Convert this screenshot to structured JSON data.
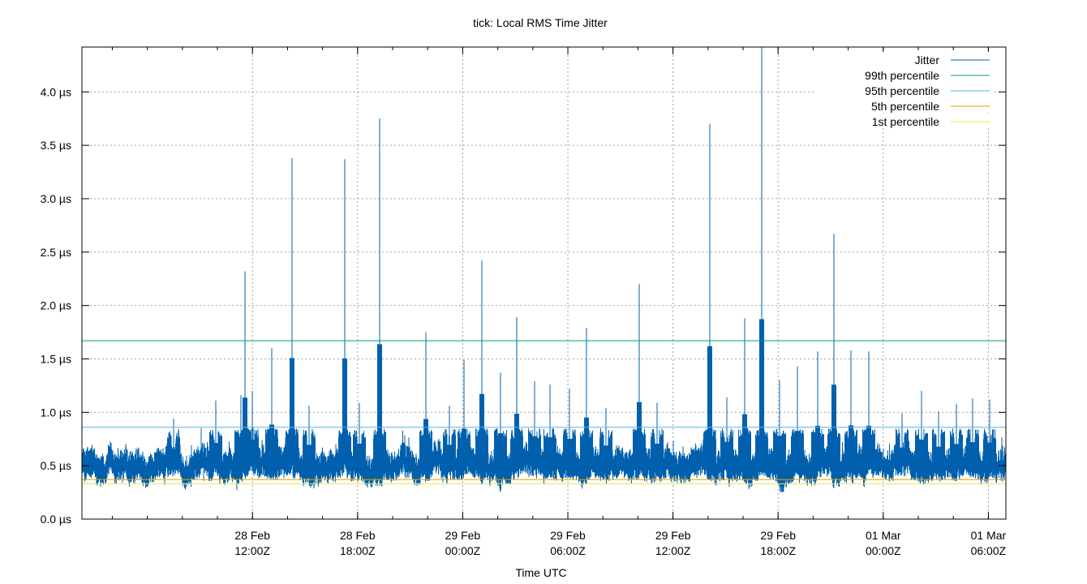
{
  "chart_data": {
    "type": "line",
    "title": "tick: Local RMS Time Jitter",
    "xlabel": "Time UTC",
    "ylabel": "",
    "x_range": [
      "2024-02-28T02:16Z",
      "2024-03-01T07:00Z"
    ],
    "ylim": [
      0,
      4.42
    ],
    "y_unit": "µs",
    "grid": true,
    "legend_position": "top-right",
    "y_ticks": [
      {
        "value": 0.0,
        "label": "0.0 µs"
      },
      {
        "value": 0.5,
        "label": "0.5 µs"
      },
      {
        "value": 1.0,
        "label": "1.0 µs"
      },
      {
        "value": 1.5,
        "label": "1.5 µs"
      },
      {
        "value": 2.0,
        "label": "2.0 µs"
      },
      {
        "value": 2.5,
        "label": "2.5 µs"
      },
      {
        "value": 3.0,
        "label": "3.0 µs"
      },
      {
        "value": 3.5,
        "label": "3.5 µs"
      },
      {
        "value": 4.0,
        "label": "4.0 µs"
      }
    ],
    "x_ticks": [
      {
        "value": "2024-02-28T12:00Z",
        "label_date": "28 Feb",
        "label_time": "12:00Z"
      },
      {
        "value": "2024-02-28T18:00Z",
        "label_date": "28 Feb",
        "label_time": "18:00Z"
      },
      {
        "value": "2024-02-29T00:00Z",
        "label_date": "29 Feb",
        "label_time": "00:00Z"
      },
      {
        "value": "2024-02-29T06:00Z",
        "label_date": "29 Feb",
        "label_time": "06:00Z"
      },
      {
        "value": "2024-02-29T12:00Z",
        "label_date": "29 Feb",
        "label_time": "12:00Z"
      },
      {
        "value": "2024-02-29T18:00Z",
        "label_date": "29 Feb",
        "label_time": "18:00Z"
      },
      {
        "value": "2024-03-01T00:00Z",
        "label_date": "01 Mar",
        "label_time": "00:00Z"
      },
      {
        "value": "2024-03-01T06:00Z",
        "label_date": "01 Mar",
        "label_time": "06:00Z"
      }
    ],
    "series": [
      {
        "name": "Jitter",
        "color": "#0060ad",
        "baseline": 0.5,
        "spikes": [
          {
            "x": "2024-02-28T07:30Z",
            "y": 0.94
          },
          {
            "x": "2024-02-28T09:55Z",
            "y": 1.11
          },
          {
            "x": "2024-02-28T11:20Z",
            "y": 1.16
          },
          {
            "x": "2024-02-28T11:35Z",
            "y": 2.32
          },
          {
            "x": "2024-02-28T12:00Z",
            "y": 1.2
          },
          {
            "x": "2024-02-28T13:05Z",
            "y": 1.6
          },
          {
            "x": "2024-02-28T14:15Z",
            "y": 3.38
          },
          {
            "x": "2024-02-28T15:15Z",
            "y": 1.06
          },
          {
            "x": "2024-02-28T17:15Z",
            "y": 3.37
          },
          {
            "x": "2024-02-28T18:05Z",
            "y": 1.09
          },
          {
            "x": "2024-02-28T19:15Z",
            "y": 3.75
          },
          {
            "x": "2024-02-28T21:55Z",
            "y": 1.75
          },
          {
            "x": "2024-02-28T23:15Z",
            "y": 1.06
          },
          {
            "x": "2024-02-29T00:05Z",
            "y": 1.49
          },
          {
            "x": "2024-02-29T01:05Z",
            "y": 2.42
          },
          {
            "x": "2024-02-29T02:10Z",
            "y": 1.37
          },
          {
            "x": "2024-02-29T03:05Z",
            "y": 1.89
          },
          {
            "x": "2024-02-29T04:05Z",
            "y": 1.29
          },
          {
            "x": "2024-02-29T05:00Z",
            "y": 1.26
          },
          {
            "x": "2024-02-29T06:05Z",
            "y": 1.22
          },
          {
            "x": "2024-02-29T07:05Z",
            "y": 1.79
          },
          {
            "x": "2024-02-29T08:10Z",
            "y": 1.04
          },
          {
            "x": "2024-02-29T10:05Z",
            "y": 2.2
          },
          {
            "x": "2024-02-29T11:05Z",
            "y": 1.09
          },
          {
            "x": "2024-02-29T14:05Z",
            "y": 3.7
          },
          {
            "x": "2024-02-29T15:05Z",
            "y": 1.14
          },
          {
            "x": "2024-02-29T16:05Z",
            "y": 1.88
          },
          {
            "x": "2024-02-29T17:05Z",
            "y": 4.42
          },
          {
            "x": "2024-02-29T18:05Z",
            "y": 1.3
          },
          {
            "x": "2024-02-29T19:05Z",
            "y": 1.43
          },
          {
            "x": "2024-02-29T20:15Z",
            "y": 1.57
          },
          {
            "x": "2024-02-29T21:10Z",
            "y": 2.67
          },
          {
            "x": "2024-02-29T22:10Z",
            "y": 1.58
          },
          {
            "x": "2024-02-29T23:10Z",
            "y": 1.57
          },
          {
            "x": "2024-03-01T01:05Z",
            "y": 0.99
          },
          {
            "x": "2024-03-01T02:10Z",
            "y": 1.2
          },
          {
            "x": "2024-03-01T03:10Z",
            "y": 1.01
          },
          {
            "x": "2024-03-01T04:10Z",
            "y": 1.08
          },
          {
            "x": "2024-03-01T05:05Z",
            "y": 1.13
          },
          {
            "x": "2024-03-01T06:05Z",
            "y": 1.12
          }
        ]
      },
      {
        "name": "99th percentile",
        "color": "#009e73",
        "value": 1.67
      },
      {
        "name": "95th percentile",
        "color": "#56b4e9",
        "value": 0.86
      },
      {
        "name": "5th percentile",
        "color": "#e69f00",
        "value": 0.37
      },
      {
        "name": "1st percentile",
        "color": "#f0e442",
        "value": 0.33
      }
    ]
  }
}
